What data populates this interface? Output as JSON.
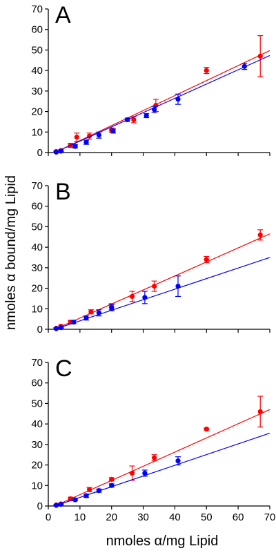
{
  "figure": {
    "xlabel": "nmoles α/mg Lipid",
    "ylabel": "nmoles α bound/mg Lipid"
  },
  "chart_data": [
    {
      "type": "scatter",
      "panel": "A",
      "xlim": [
        0,
        70
      ],
      "ylim": [
        0,
        70
      ],
      "xticks": [
        0,
        10,
        20,
        30,
        40,
        50,
        60,
        70
      ],
      "yticks": [
        0,
        10,
        20,
        30,
        40,
        50,
        60,
        70
      ],
      "series": [
        {
          "color": "#ff0000",
          "x": [
            2.5,
            4,
            7,
            9,
            13,
            20,
            27,
            34,
            50,
            67
          ],
          "y": [
            0.5,
            1,
            3.5,
            7.5,
            8,
            11,
            16,
            23,
            40,
            47
          ],
          "err": [
            0.5,
            0.5,
            1,
            2,
            1.5,
            1,
            1.5,
            3,
            1.5,
            10
          ],
          "fit": {
            "x": [
              2,
              70
            ],
            "y": [
              0,
              49.7
            ]
          }
        },
        {
          "color": "#0000ff",
          "x": [
            2.5,
            4,
            8.5,
            12,
            16,
            20.5,
            25,
            31,
            33.5,
            41,
            62
          ],
          "y": [
            0.2,
            0.7,
            3,
            5,
            8.5,
            10.5,
            16,
            18,
            21,
            26,
            42
          ],
          "err": [
            0.3,
            0.3,
            0.8,
            1,
            1.5,
            1,
            0.8,
            1,
            1.5,
            2.5,
            1.5
          ],
          "fit": {
            "x": [
              2,
              70
            ],
            "y": [
              0,
              47.3
            ]
          }
        }
      ]
    },
    {
      "type": "scatter",
      "panel": "B",
      "xlim": [
        0,
        70
      ],
      "ylim": [
        0,
        70
      ],
      "xticks": [
        0,
        10,
        20,
        30,
        40,
        50,
        60,
        70
      ],
      "yticks": [
        0,
        10,
        20,
        30,
        40,
        50,
        60,
        70
      ],
      "series": [
        {
          "color": "#ff0000",
          "x": [
            2.5,
            4,
            7,
            13.5,
            20,
            26.5,
            33.5,
            50,
            67
          ],
          "y": [
            0.5,
            1.5,
            3.5,
            8.5,
            11,
            16,
            21,
            34,
            46
          ],
          "err": [
            0.3,
            0.5,
            0.8,
            1,
            1.5,
            2.5,
            2.5,
            1.5,
            2.5
          ],
          "fit": {
            "x": [
              2,
              70
            ],
            "y": [
              0,
              46.5
            ]
          }
        },
        {
          "color": "#0000ff",
          "x": [
            2.5,
            4,
            8,
            12,
            16,
            20,
            30.5,
            41
          ],
          "y": [
            0.3,
            0.8,
            3.5,
            5.5,
            8,
            10.5,
            15.5,
            21
          ],
          "err": [
            0.3,
            0.3,
            0.8,
            1,
            1.5,
            1.5,
            3,
            5
          ],
          "fit": {
            "x": [
              2,
              70
            ],
            "y": [
              0,
              35
            ]
          }
        }
      ]
    },
    {
      "type": "scatter",
      "panel": "C",
      "xlim": [
        0,
        70
      ],
      "ylim": [
        0,
        70
      ],
      "xticks": [
        0,
        10,
        20,
        30,
        40,
        50,
        60,
        70
      ],
      "yticks": [
        0,
        10,
        20,
        30,
        40,
        50,
        60,
        70
      ],
      "series": [
        {
          "color": "#ff0000",
          "x": [
            2.5,
            4,
            7,
            13,
            20,
            26.5,
            33.5,
            50,
            67
          ],
          "y": [
            0.5,
            1,
            3.5,
            8,
            13,
            16,
            23.5,
            37.5,
            46
          ],
          "err": [
            0.3,
            0.5,
            0.8,
            1,
            0.8,
            3.5,
            1.5,
            0.5,
            7.5
          ],
          "fit": {
            "x": [
              2,
              70
            ],
            "y": [
              0,
              47
            ]
          }
        },
        {
          "color": "#0000ff",
          "x": [
            2.5,
            4,
            8.5,
            12,
            16,
            20,
            30.5,
            41
          ],
          "y": [
            0.3,
            0.8,
            3,
            5,
            7.5,
            10,
            16,
            22
          ],
          "err": [
            0.3,
            0.3,
            0.5,
            0.8,
            0.8,
            0.8,
            1.5,
            2
          ],
          "fit": {
            "x": [
              2,
              70
            ],
            "y": [
              0,
              35.5
            ]
          }
        }
      ]
    }
  ]
}
